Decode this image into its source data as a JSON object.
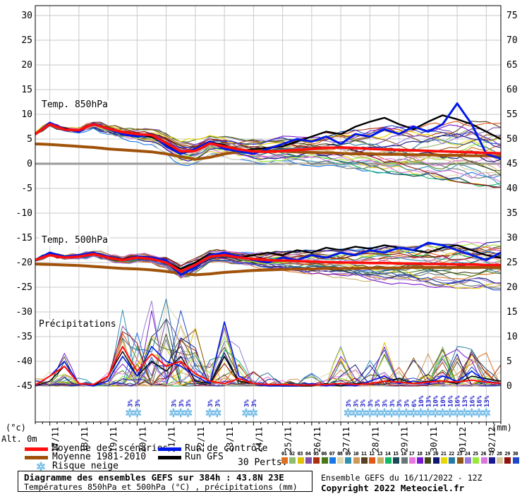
{
  "chart_data": {
    "type": "line",
    "title": "Diagramme des ensembles GEFS sur 384h : 43.8N 23E",
    "subtitle": "Températures 850hPa et 500hPa (°C) , précipitations (mm)",
    "info": {
      "run_line": "Ensemble GEFS du 16/11/2022 - 12Z",
      "copyright_line": "Copyright 2022 Meteociel.fr"
    },
    "x_axis": {
      "dates": [
        "17/11",
        "18/11",
        "19/11",
        "20/11",
        "21/11",
        "22/11",
        "23/11",
        "24/11",
        "25/11",
        "26/11",
        "27/11",
        "28/11",
        "29/11",
        "30/11",
        "01/12",
        "02/12"
      ],
      "hours_total": 384,
      "step_hours": 6
    },
    "y_left": {
      "unit": "(°c)",
      "alt_label": "Alt. 0m",
      "min": -45,
      "max": 30,
      "step": 5
    },
    "y_right": {
      "unit": "(mm)",
      "min": 0,
      "max": 75,
      "step": 5
    },
    "legend": {
      "mean": "Moyenne des scénarios",
      "climate": "Moyenne 1981-2010",
      "snow": "Risque neige",
      "control": "Run de contrôle",
      "gfs": "Run GFS",
      "perts": "30 Perts."
    },
    "colors": {
      "mean": "#FF0E0E",
      "climate": "#A0520A",
      "control": "#0018E8",
      "gfs": "#000000",
      "grid": "#C9C9C9",
      "zero_line": "#9A9A9A",
      "snow_pct_text": "#2222CC",
      "snowflake": "#5AAEE0"
    },
    "members": {
      "count": 30,
      "labels": [
        "01",
        "02",
        "03",
        "04",
        "05",
        "06",
        "07",
        "08",
        "09",
        "10",
        "11",
        "12",
        "13",
        "14",
        "15",
        "16",
        "17",
        "18",
        "19",
        "20",
        "21",
        "22",
        "23",
        "24",
        "25",
        "26",
        "27",
        "28",
        "29",
        "30"
      ],
      "colors": [
        "#E07020",
        "#8FBC6F",
        "#E0C000",
        "#8050A8",
        "#A83010",
        "#487818",
        "#1878E8",
        "#E0D8B0",
        "#3090B0",
        "#D09858",
        "#584020",
        "#E05818",
        "#C8B068",
        "#10B868",
        "#1C4858",
        "#687878",
        "#E878E0",
        "#7818D0",
        "#404818",
        "#101870",
        "#E8D800",
        "#2878A0",
        "#905818",
        "#9878D8",
        "#98E838",
        "#D878D8",
        "#181890",
        "#D8C8A0",
        "#901010",
        "#2048C8"
      ]
    },
    "panels": {
      "t850": {
        "label": "Temp. 850hPa",
        "step_hours": 12,
        "mean": [
          6.0,
          8.0,
          6.9,
          6.8,
          8.0,
          7.1,
          6.4,
          6.0,
          5.8,
          4.2,
          2.5,
          2.6,
          4.1,
          3.5,
          2.9,
          2.5,
          2.4,
          2.6,
          2.8,
          3.0,
          3.2,
          3.3,
          3.2,
          3.0,
          2.9,
          2.8,
          2.7,
          2.6,
          2.5,
          2.4,
          2.3,
          2.2,
          2.1
        ],
        "climate": [
          4.0,
          3.9,
          3.7,
          3.5,
          3.3,
          3.0,
          2.8,
          2.6,
          2.4,
          2.0,
          1.4,
          0.9,
          1.3,
          2.0,
          2.4,
          2.6,
          2.6,
          2.5,
          2.4,
          2.3,
          2.2,
          2.1,
          2.0,
          2.0,
          1.9,
          1.9,
          1.8,
          1.8,
          1.7,
          1.7,
          1.6,
          1.6,
          1.5
        ],
        "control": [
          6.0,
          8.3,
          7.0,
          6.5,
          8.2,
          7.0,
          6.0,
          5.5,
          6.0,
          3.5,
          2.0,
          3.0,
          4.5,
          3.0,
          2.5,
          2.0,
          3.0,
          4.0,
          5.0,
          4.5,
          5.5,
          4.0,
          6.0,
          5.5,
          7.0,
          6.0,
          7.5,
          6.5,
          8.0,
          12.2,
          8.0,
          2.0,
          1.0
        ],
        "gfs": [
          6.0,
          8.0,
          7.2,
          6.6,
          8.1,
          7.2,
          6.2,
          5.8,
          5.5,
          4.0,
          2.2,
          2.8,
          4.3,
          3.8,
          2.5,
          3.0,
          3.2,
          3.5,
          4.5,
          5.5,
          6.5,
          6.0,
          7.5,
          8.5,
          9.3,
          8.0,
          7.0,
          8.5,
          9.8,
          9.0,
          8.0,
          6.5,
          5.0
        ],
        "spread_lo": [
          5.2,
          7.0,
          6.0,
          5.5,
          6.5,
          5.0,
          4.0,
          3.5,
          3.0,
          1.0,
          -1.5,
          -1.0,
          1.0,
          0.5,
          0.0,
          -0.5,
          -1.0,
          -1.0,
          -1.5,
          -2.0,
          -2.0,
          -2.5,
          -3.0,
          -3.5,
          -4.0,
          -4.5,
          -5.0,
          -5.5,
          -6.0,
          -6.5,
          -7.0,
          -7.5,
          -8.0
        ],
        "spread_hi": [
          7.0,
          9.0,
          8.0,
          8.0,
          9.2,
          8.5,
          8.0,
          7.5,
          7.5,
          7.0,
          6.0,
          6.0,
          6.5,
          6.5,
          6.0,
          6.0,
          6.5,
          7.0,
          7.5,
          7.5,
          8.0,
          8.5,
          8.5,
          9.0,
          9.5,
          9.5,
          10.0,
          10.5,
          11.0,
          11.5,
          12.0,
          11.5,
          11.0
        ]
      },
      "t500": {
        "label": "Temp. 500hPa",
        "step_hours": 12,
        "mean": [
          -19.5,
          -18.5,
          -19.0,
          -18.8,
          -18.3,
          -19.0,
          -19.5,
          -19.0,
          -19.3,
          -20.0,
          -21.8,
          -20.5,
          -18.8,
          -18.5,
          -19.0,
          -19.3,
          -19.5,
          -19.6,
          -19.7,
          -19.8,
          -19.9,
          -20.0,
          -20.0,
          -20.1,
          -20.1,
          -20.2,
          -20.2,
          -20.3,
          -20.3,
          -20.4,
          -20.4,
          -20.5,
          -20.5
        ],
        "climate": [
          -20.3,
          -20.4,
          -20.5,
          -20.6,
          -20.8,
          -21.0,
          -21.2,
          -21.3,
          -21.5,
          -21.8,
          -22.2,
          -22.5,
          -22.3,
          -22.0,
          -21.8,
          -21.6,
          -21.5,
          -21.4,
          -21.3,
          -21.3,
          -21.2,
          -21.2,
          -21.2,
          -21.1,
          -21.1,
          -21.1,
          -21.0,
          -21.0,
          -21.0,
          -21.0,
          -21.0,
          -21.0,
          -21.0
        ],
        "control": [
          -19.5,
          -18.0,
          -18.8,
          -18.5,
          -18.0,
          -18.8,
          -19.5,
          -18.8,
          -19.0,
          -19.5,
          -22.5,
          -21.0,
          -18.5,
          -18.0,
          -18.8,
          -19.5,
          -20.0,
          -19.0,
          -19.5,
          -18.5,
          -19.0,
          -18.0,
          -18.5,
          -17.5,
          -18.0,
          -17.0,
          -17.5,
          -16.0,
          -16.5,
          -17.5,
          -18.5,
          -19.5,
          -18.0
        ],
        "gfs": [
          -19.5,
          -18.3,
          -19.0,
          -18.6,
          -18.2,
          -18.9,
          -19.3,
          -18.8,
          -19.0,
          -19.8,
          -21.3,
          -20.0,
          -18.2,
          -18.5,
          -19.0,
          -18.5,
          -18.0,
          -18.5,
          -17.5,
          -18.0,
          -17.0,
          -17.5,
          -16.8,
          -17.2,
          -16.5,
          -17.0,
          -17.5,
          -18.0,
          -17.0,
          -16.5,
          -17.5,
          -18.5,
          -19.0
        ],
        "spread_lo": [
          -20.5,
          -19.5,
          -20.0,
          -19.8,
          -19.3,
          -20.0,
          -20.5,
          -20.3,
          -20.5,
          -21.5,
          -24.0,
          -23.0,
          -20.5,
          -20.5,
          -21.0,
          -21.5,
          -22.0,
          -22.5,
          -23.0,
          -23.5,
          -24.0,
          -24.5,
          -25.0,
          -25.5,
          -26.0,
          -26.0,
          -26.5,
          -27.0,
          -27.0,
          -27.5,
          -27.5,
          -28.0,
          -28.0
        ],
        "spread_hi": [
          -18.5,
          -17.5,
          -18.0,
          -17.8,
          -17.3,
          -18.0,
          -18.5,
          -18.0,
          -18.2,
          -18.5,
          -20.0,
          -18.5,
          -17.0,
          -17.0,
          -17.5,
          -17.5,
          -17.5,
          -17.0,
          -17.0,
          -16.5,
          -16.5,
          -16.0,
          -16.0,
          -15.5,
          -15.5,
          -15.0,
          -15.0,
          -14.5,
          -14.5,
          -14.0,
          -14.0,
          -13.5,
          -13.5
        ]
      },
      "precip": {
        "label": "Précipitations",
        "step_hours": 12,
        "mean": [
          0.2,
          2.0,
          4.0,
          0.5,
          0.3,
          2.0,
          8.0,
          3.0,
          6.5,
          4.0,
          5.0,
          2.5,
          1.0,
          0.5,
          1.5,
          0.5,
          0.3,
          0.3,
          0.2,
          0.2,
          0.3,
          0.5,
          0.3,
          0.5,
          1.0,
          0.8,
          0.5,
          0.8,
          1.0,
          0.8,
          1.2,
          0.8,
          0.5
        ],
        "control": [
          0,
          2,
          5,
          0.5,
          0,
          1,
          6,
          2,
          8,
          5,
          4,
          2,
          0.5,
          13,
          2,
          0.5,
          0,
          0,
          0,
          0.5,
          0,
          0.5,
          0,
          1,
          2,
          0.5,
          1,
          0.5,
          2,
          1,
          3,
          1,
          0.5
        ],
        "gfs": [
          0,
          1,
          4,
          0.5,
          0,
          2,
          7,
          2,
          5,
          3,
          6,
          1,
          0.5,
          6,
          1,
          0.5,
          0.3,
          0,
          0,
          0,
          0.5,
          0,
          0.5,
          0.5,
          1,
          1.5,
          0.5,
          1,
          1,
          0.5,
          2,
          1.5,
          1
        ],
        "env_max": [
          2,
          4,
          7,
          2,
          2,
          6,
          16,
          12,
          19,
          18,
          17,
          12,
          6,
          14,
          8,
          4,
          3,
          2,
          2,
          3,
          4,
          8,
          5,
          6,
          9,
          7,
          6,
          8,
          10,
          8,
          9,
          7,
          5
        ]
      }
    },
    "snow_marks": [
      {
        "t": 78,
        "pct": "3%"
      },
      {
        "t": 84,
        "pct": "3%"
      },
      {
        "t": 114,
        "pct": "3%"
      },
      {
        "t": 120,
        "pct": "3%"
      },
      {
        "t": 126,
        "pct": "3%"
      },
      {
        "t": 144,
        "pct": "3%"
      },
      {
        "t": 150,
        "pct": "3%"
      },
      {
        "t": 174,
        "pct": "3%"
      },
      {
        "t": 180,
        "pct": "3%"
      },
      {
        "t": 258,
        "pct": "3%"
      },
      {
        "t": 264,
        "pct": "3%"
      },
      {
        "t": 270,
        "pct": "3%"
      },
      {
        "t": 276,
        "pct": "3%"
      },
      {
        "t": 282,
        "pct": "3%"
      },
      {
        "t": 288,
        "pct": "3%"
      },
      {
        "t": 294,
        "pct": "3%"
      },
      {
        "t": 300,
        "pct": "3%"
      },
      {
        "t": 306,
        "pct": "3%"
      },
      {
        "t": 312,
        "pct": "6%"
      },
      {
        "t": 318,
        "pct": "10%"
      },
      {
        "t": 324,
        "pct": "13%"
      },
      {
        "t": 330,
        "pct": "10%"
      },
      {
        "t": 336,
        "pct": "10%"
      },
      {
        "t": 342,
        "pct": "16%"
      },
      {
        "t": 348,
        "pct": "16%"
      },
      {
        "t": 354,
        "pct": "13%"
      },
      {
        "t": 360,
        "pct": "16%"
      },
      {
        "t": 366,
        "pct": "16%"
      },
      {
        "t": 372,
        "pct": "13%"
      }
    ]
  }
}
